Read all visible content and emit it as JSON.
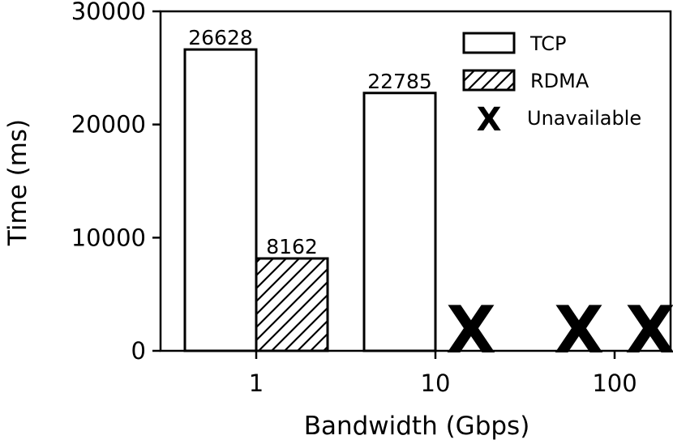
{
  "chart_data": {
    "type": "bar",
    "title": "",
    "xlabel": "Bandwidth (Gbps)",
    "ylabel": "Time (ms)",
    "categories": [
      "1",
      "10",
      "100"
    ],
    "ylim": [
      0,
      30000
    ],
    "yticks": [
      0,
      10000,
      20000,
      30000
    ],
    "series": [
      {
        "name": "TCP",
        "pattern": "none",
        "values": [
          26628,
          22785,
          null
        ]
      },
      {
        "name": "RDMA",
        "pattern": "hatch",
        "values": [
          8162,
          null,
          null
        ]
      }
    ],
    "data_labels": [
      "26628",
      "8162",
      "22785"
    ],
    "unavailable": {
      "label": "Unavailable",
      "marker": "X"
    },
    "legend_position": "top-right",
    "grid": false,
    "colors": {
      "edge": "#000000",
      "fill": "#ffffff"
    }
  }
}
